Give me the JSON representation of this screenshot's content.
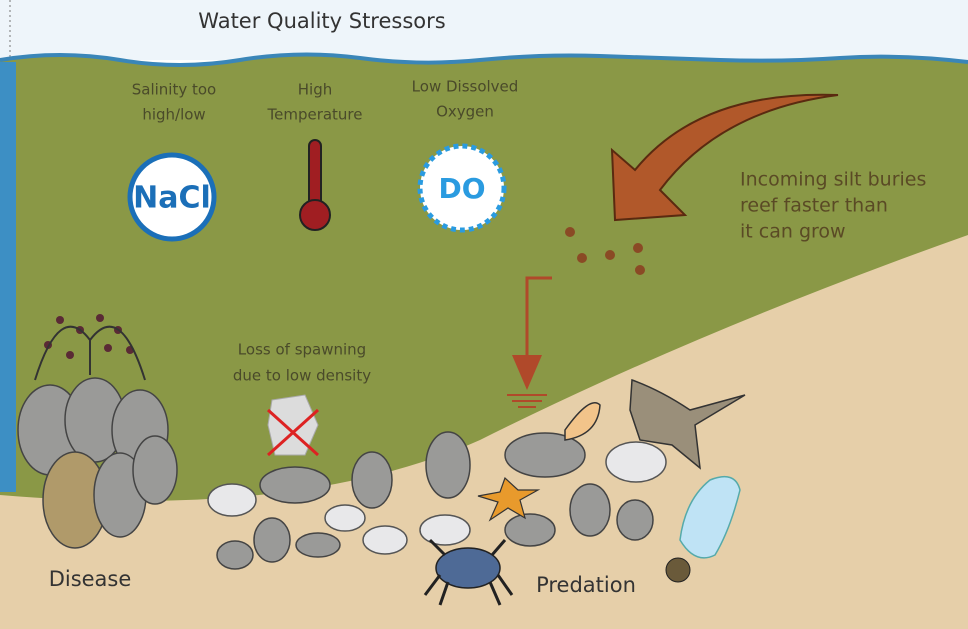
{
  "header": {
    "title": "Water Quality Stressors"
  },
  "stressors": [
    {
      "lines": [
        "Salinity too",
        "high/low"
      ],
      "icon": "NaCl"
    },
    {
      "lines": [
        "High",
        "Temperature"
      ]
    },
    {
      "lines": [
        "Low Dissolved",
        "Oxygen"
      ],
      "icon": "DO"
    }
  ],
  "silt": {
    "lines": [
      "Incoming silt buries",
      "reef faster than",
      "it can grow"
    ]
  },
  "spawning": {
    "lines": [
      "Loss of spawning",
      "due to low density"
    ]
  },
  "labels": {
    "disease": "Disease",
    "predation": "Predation"
  }
}
